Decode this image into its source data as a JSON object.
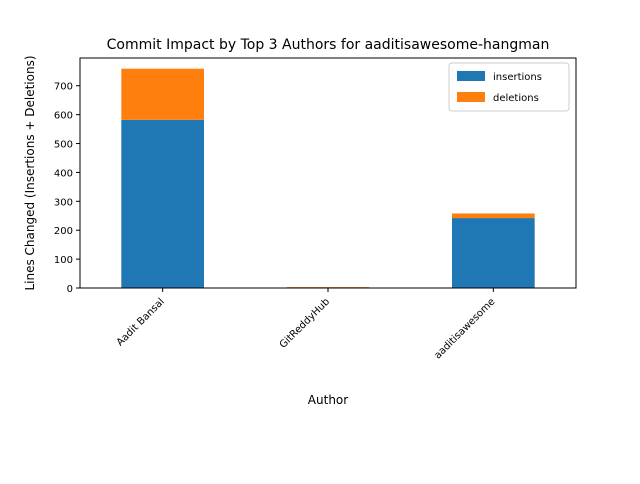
{
  "chart_data": {
    "type": "bar",
    "stacked": true,
    "title": "Commit Impact by Top 3 Authors for aaditisawesome-hangman",
    "xlabel": "Author",
    "ylabel": "Lines Changed (Insertions + Deletions)",
    "categories": [
      "Aadit Bansal",
      "GitReddyHub",
      "aaditisawesome"
    ],
    "series": [
      {
        "name": "insertions",
        "values": [
          582,
          1,
          242
        ],
        "color": "#1f77b4"
      },
      {
        "name": "deletions",
        "values": [
          177,
          2,
          16
        ],
        "color": "#ff7f0e"
      }
    ],
    "ylim": [
      0,
      796
    ],
    "yticks": [
      0,
      100,
      200,
      300,
      400,
      500,
      600,
      700
    ],
    "grid": false,
    "legend_position": "top-right"
  }
}
